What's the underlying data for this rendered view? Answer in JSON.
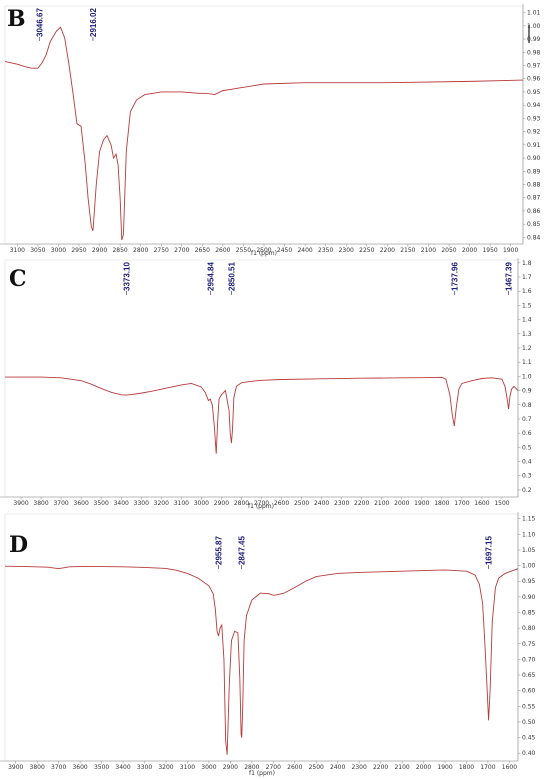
{
  "colors": {
    "spectrum": "#b83a3a",
    "peak_label": "#1b1b7a",
    "frame": "#888888"
  },
  "chart_data": [
    {
      "type": "line",
      "panel": "B",
      "xlabel": "f1 (ppm)",
      "xlim": [
        3130,
        1870
      ],
      "ylim": [
        0.835,
        1.015
      ],
      "x_ticks": [
        "3100",
        "3050",
        "3000",
        "2950",
        "2900",
        "2850",
        "2800",
        "2750",
        "2700",
        "2650",
        "2600",
        "2550",
        "2500",
        "2450",
        "2400",
        "2350",
        "2300",
        "2250",
        "2200",
        "2150",
        "2100",
        "2050",
        "2000",
        "1950",
        "1900"
      ],
      "y_ticks": [
        "0.84",
        "0.85",
        "0.86",
        "0.87",
        "0.88",
        "0.89",
        "0.90",
        "0.91",
        "0.92",
        "0.93",
        "0.94",
        "0.95",
        "0.96",
        "0.97",
        "0.98",
        "0.99",
        "1.00",
        "1.01"
      ],
      "peak_labels": [
        "3046.67",
        "2916.02"
      ],
      "series": [
        {
          "x": [
            3130,
            3100,
            3080,
            3065,
            3050,
            3040,
            3030,
            3020,
            3005,
            2995,
            2985,
            2975,
            2965,
            2955,
            2945,
            2935,
            2928,
            2920,
            2916,
            2908,
            2900,
            2890,
            2882,
            2872,
            2866,
            2860,
            2855,
            2850,
            2846,
            2842,
            2835,
            2825,
            2810,
            2790,
            2770,
            2750,
            2700,
            2660,
            2640,
            2620,
            2600,
            2580,
            2560,
            2540,
            2520,
            2500,
            2400,
            2200,
            2000,
            1870
          ],
          "y": [
            0.973,
            0.971,
            0.969,
            0.968,
            0.968,
            0.972,
            0.978,
            0.988,
            0.996,
            0.999,
            0.991,
            0.972,
            0.95,
            0.926,
            0.924,
            0.896,
            0.87,
            0.848,
            0.845,
            0.88,
            0.905,
            0.914,
            0.917,
            0.91,
            0.9,
            0.903,
            0.895,
            0.87,
            0.838,
            0.842,
            0.905,
            0.935,
            0.944,
            0.948,
            0.949,
            0.95,
            0.95,
            0.949,
            0.949,
            0.948,
            0.951,
            0.952,
            0.953,
            0.954,
            0.955,
            0.956,
            0.957,
            0.957,
            0.958,
            0.959
          ]
        }
      ]
    },
    {
      "type": "line",
      "panel": "C",
      "xlabel": "f1 (ppm)",
      "xlim": [
        3980,
        1420
      ],
      "ylim": [
        0.15,
        1.82
      ],
      "x_ticks": [
        "3900",
        "3800",
        "3700",
        "3600",
        "3500",
        "3400",
        "3300",
        "3200",
        "3100",
        "3000",
        "2900",
        "2800",
        "2700",
        "2600",
        "2500",
        "2400",
        "2300",
        "2200",
        "2100",
        "2000",
        "1900",
        "1800",
        "1700",
        "1600",
        "1500"
      ],
      "y_ticks": [
        "0.2",
        "0.3",
        "0.4",
        "0.5",
        "0.6",
        "0.7",
        "0.8",
        "0.9",
        "1.0",
        "1.1",
        "1.2",
        "1.3",
        "1.4",
        "1.5",
        "1.6",
        "1.7",
        "1.8"
      ],
      "peak_labels": [
        "3373.10",
        "2954.84",
        "2850.51",
        "1737.96",
        "1467.39"
      ],
      "series": [
        {
          "x": [
            3980,
            3800,
            3700,
            3600,
            3550,
            3500,
            3450,
            3400,
            3373,
            3350,
            3300,
            3250,
            3200,
            3150,
            3100,
            3050,
            3000,
            2980,
            2965,
            2955,
            2945,
            2935,
            2926,
            2918,
            2912,
            2900,
            2880,
            2862,
            2856,
            2850,
            2845,
            2838,
            2825,
            2800,
            2750,
            2700,
            2600,
            2400,
            2200,
            2000,
            1900,
            1800,
            1780,
            1760,
            1748,
            1738,
            1728,
            1715,
            1700,
            1650,
            1600,
            1550,
            1500,
            1485,
            1475,
            1467,
            1460,
            1452,
            1440,
            1420
          ],
          "y": [
            0.995,
            0.995,
            0.99,
            0.97,
            0.945,
            0.915,
            0.888,
            0.87,
            0.868,
            0.872,
            0.882,
            0.895,
            0.91,
            0.925,
            0.94,
            0.95,
            0.925,
            0.885,
            0.83,
            0.84,
            0.795,
            0.64,
            0.455,
            0.7,
            0.84,
            0.87,
            0.9,
            0.76,
            0.6,
            0.53,
            0.62,
            0.85,
            0.93,
            0.955,
            0.965,
            0.972,
            0.978,
            0.983,
            0.987,
            0.99,
            0.991,
            0.993,
            0.98,
            0.87,
            0.73,
            0.65,
            0.78,
            0.91,
            0.95,
            0.97,
            0.985,
            0.99,
            0.98,
            0.93,
            0.85,
            0.77,
            0.86,
            0.91,
            0.93,
            0.9
          ]
        }
      ]
    },
    {
      "type": "line",
      "panel": "D",
      "xlabel": "f1 (ppm)",
      "xlim": [
        3950,
        1560
      ],
      "ylim": [
        0.375,
        1.165
      ],
      "x_ticks": [
        "3900",
        "3800",
        "3700",
        "3600",
        "3500",
        "3400",
        "3300",
        "3200",
        "3100",
        "3000",
        "2900",
        "2800",
        "2700",
        "2600",
        "2500",
        "2400",
        "2300",
        "2200",
        "2100",
        "2000",
        "1900",
        "1800",
        "1700",
        "1600"
      ],
      "y_ticks": [
        "0.40",
        "0.45",
        "0.50",
        "0.55",
        "0.60",
        "0.65",
        "0.70",
        "0.75",
        "0.80",
        "0.85",
        "0.90",
        "0.95",
        "1.00",
        "1.05",
        "1.10",
        "1.15"
      ],
      "peak_labels": [
        "2955.87",
        "2847.45",
        "1697.15"
      ],
      "series": [
        {
          "x": [
            3950,
            3850,
            3750,
            3700,
            3650,
            3600,
            3500,
            3400,
            3300,
            3200,
            3150,
            3100,
            3050,
            3000,
            2980,
            2970,
            2962,
            2955,
            2948,
            2940,
            2930,
            2922,
            2915,
            2905,
            2895,
            2880,
            2865,
            2856,
            2850,
            2847,
            2842,
            2836,
            2825,
            2800,
            2760,
            2720,
            2700,
            2680,
            2650,
            2600,
            2550,
            2500,
            2400,
            2300,
            2200,
            2100,
            2000,
            1900,
            1800,
            1760,
            1740,
            1725,
            1715,
            1705,
            1697,
            1690,
            1680,
            1665,
            1650,
            1620,
            1600,
            1560
          ],
          "y": [
            0.998,
            0.997,
            0.995,
            0.99,
            0.996,
            0.997,
            0.997,
            0.996,
            0.994,
            0.991,
            0.985,
            0.975,
            0.96,
            0.935,
            0.91,
            0.86,
            0.79,
            0.775,
            0.8,
            0.81,
            0.7,
            0.44,
            0.395,
            0.62,
            0.76,
            0.79,
            0.785,
            0.64,
            0.46,
            0.45,
            0.56,
            0.76,
            0.84,
            0.89,
            0.912,
            0.91,
            0.905,
            0.907,
            0.912,
            0.93,
            0.95,
            0.965,
            0.975,
            0.978,
            0.98,
            0.982,
            0.984,
            0.986,
            0.982,
            0.97,
            0.94,
            0.88,
            0.76,
            0.62,
            0.505,
            0.6,
            0.82,
            0.93,
            0.96,
            0.975,
            0.98,
            0.99
          ]
        }
      ]
    }
  ]
}
